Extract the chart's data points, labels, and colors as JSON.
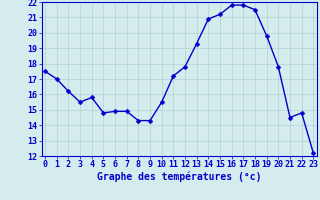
{
  "hours": [
    0,
    1,
    2,
    3,
    4,
    5,
    6,
    7,
    8,
    9,
    10,
    11,
    12,
    13,
    14,
    15,
    16,
    17,
    18,
    19,
    20,
    21,
    22,
    23
  ],
  "temperatures": [
    17.5,
    17.0,
    16.2,
    15.5,
    15.8,
    14.8,
    14.9,
    14.9,
    14.3,
    14.3,
    15.5,
    17.2,
    17.8,
    19.3,
    20.9,
    21.2,
    21.8,
    21.8,
    21.5,
    19.8,
    17.8,
    14.5,
    14.8,
    12.2
  ],
  "line_color": "#0000cc",
  "marker_color": "#0000cc",
  "background_color": "#d4ecee",
  "grid_color": "#aacccc",
  "axis_color": "#0000cc",
  "title": "Graphe des températures (°c)",
  "ylim": [
    12,
    22
  ],
  "yticks": [
    12,
    13,
    14,
    15,
    16,
    17,
    18,
    19,
    20,
    21,
    22
  ],
  "xticks": [
    0,
    1,
    2,
    3,
    4,
    5,
    6,
    7,
    8,
    9,
    10,
    11,
    12,
    13,
    14,
    15,
    16,
    17,
    18,
    19,
    20,
    21,
    22,
    23
  ],
  "tick_fontsize": 6.0,
  "title_fontsize": 7.0,
  "linewidth": 1.0,
  "markersize": 2.5
}
